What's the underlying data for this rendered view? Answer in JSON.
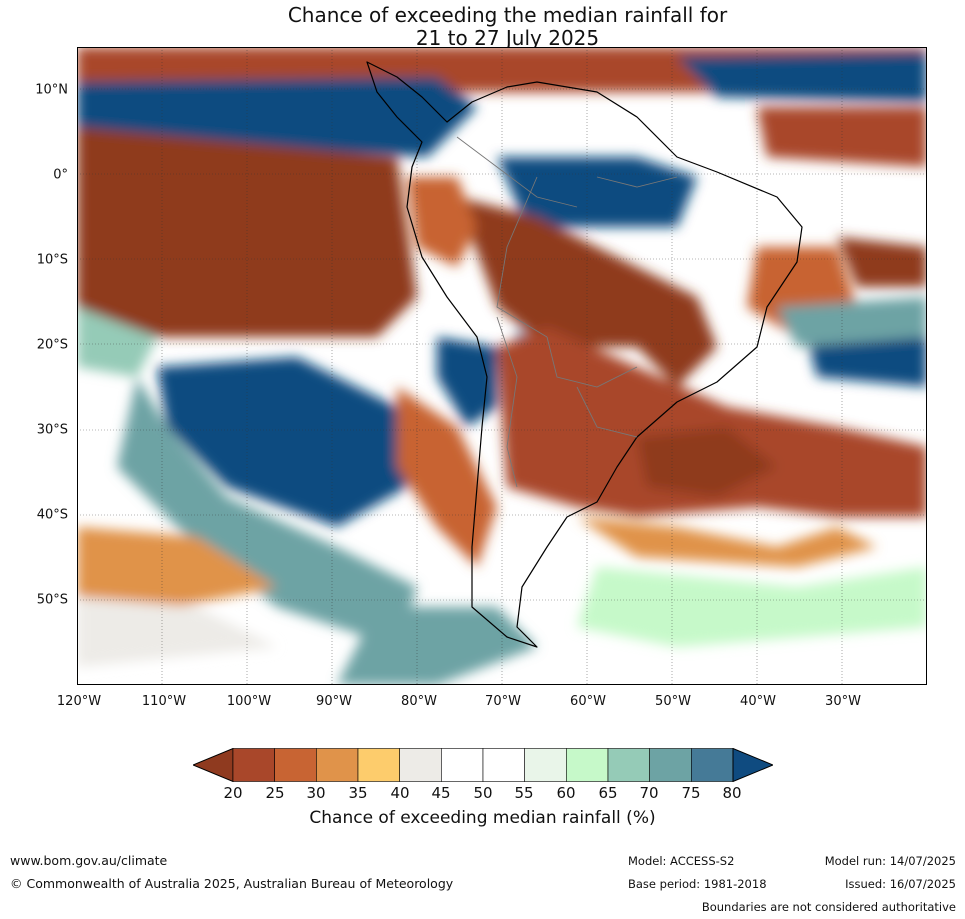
{
  "title": {
    "line1": "Chance of exceeding the median rainfall for",
    "line2": "21 to 27 July 2025"
  },
  "map": {
    "lat_labels": [
      "10°N",
      "0°",
      "10°S",
      "20°S",
      "30°S",
      "40°S",
      "50°S"
    ],
    "lon_labels": [
      "120°W",
      "110°W",
      "100°W",
      "90°W",
      "80°W",
      "70°W",
      "60°W",
      "50°W",
      "40°W",
      "30°W"
    ]
  },
  "colorbar": {
    "ticks": [
      "20",
      "25",
      "30",
      "35",
      "40",
      "45",
      "50",
      "55",
      "60",
      "65",
      "70",
      "75",
      "80"
    ],
    "colors": [
      "#8f3a1f",
      "#a9472a",
      "#c86433",
      "#e0934a",
      "#fdcc6c",
      "#edebe7",
      "#ffffff",
      "#ffffff",
      "#e9f5e9",
      "#c6f9c9",
      "#95cbb7",
      "#6da3a4",
      "#457a97",
      "#0f4b80"
    ],
    "label": "Chance of exceeding median rainfall (%)"
  },
  "footer": {
    "website": "www.bom.gov.au/climate",
    "copyright": "© Commonwealth of Australia 2025, Australian Bureau of Meteorology",
    "model": "Model: ACCESS-S2",
    "base_period": "Base period: 1981-2018",
    "model_run": "Model run: 14/07/2025",
    "issued": "Issued: 16/07/2025",
    "boundaries_note": "Boundaries are not considered authoritative"
  }
}
